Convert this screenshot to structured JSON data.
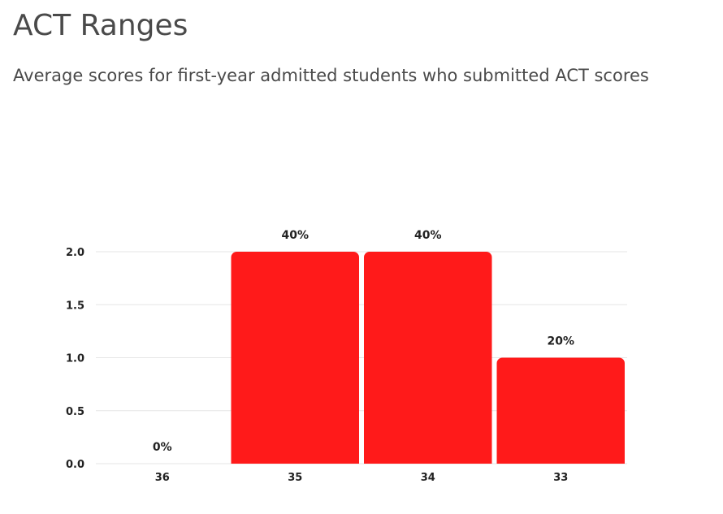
{
  "header": {
    "title": "ACT Ranges",
    "subtitle": "Average scores for first-year admitted students who submitted ACT scores"
  },
  "chart_data": {
    "type": "bar",
    "title": "",
    "xlabel": "",
    "ylabel": "",
    "categories": [
      "36",
      "35",
      "34",
      "33"
    ],
    "values": [
      0,
      2,
      2,
      1
    ],
    "data_labels": [
      "0%",
      "40%",
      "40%",
      "20%"
    ],
    "ylim": [
      0,
      2
    ],
    "yticks": [
      0,
      0.5,
      1,
      1.5,
      2
    ],
    "ytick_labels": [
      "0.0",
      "0.5",
      "1.0",
      "1.5",
      "2.0"
    ],
    "grid": true,
    "legend": "none",
    "bar_color": "#ff1a1a"
  }
}
